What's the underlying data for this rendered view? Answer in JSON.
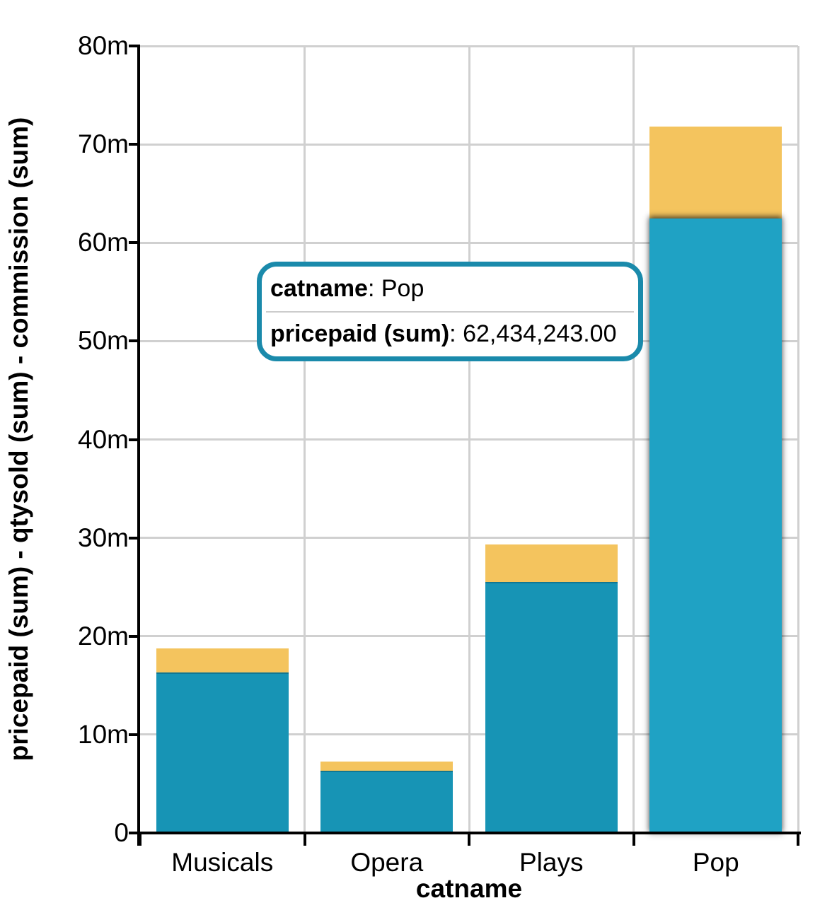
{
  "chart": {
    "y_axis": {
      "title": "pricepaid (sum) - qtysold (sum) - commission (sum)",
      "tick_labels": [
        "80m",
        "70m",
        "60m",
        "50m",
        "40m",
        "30m",
        "20m",
        "10m",
        "0"
      ]
    },
    "x_axis": {
      "title": "catname",
      "categories": [
        "Musicals",
        "Opera",
        "Plays",
        "Pop"
      ]
    },
    "tooltip": {
      "rows": [
        {
          "label": "catname",
          "value": ": Pop"
        },
        {
          "label": "pricepaid (sum)",
          "value": ": 62,434,243.00"
        }
      ]
    },
    "colors": {
      "pricepaid_bar": "#1794b5",
      "pricepaid_bar_hovered": "#1fa2c4",
      "commission_bar": "#f4c45e",
      "tooltip_border": "#1a8aab",
      "gridline": "#d0d0d0",
      "axis": "#000000"
    }
  },
  "chart_data": {
    "type": "bar",
    "stacked": true,
    "title": "",
    "xlabel": "catname",
    "ylabel": "pricepaid (sum) - qtysold (sum) - commission (sum)",
    "categories": [
      "Musicals",
      "Opera",
      "Plays",
      "Pop"
    ],
    "series": [
      {
        "name": "pricepaid (sum)",
        "color": "#1794b5",
        "values": [
          16320000,
          6330000,
          25520000,
          62434243
        ]
      },
      {
        "name": "qtysold (sum)",
        "color": null,
        "values": [
          null,
          null,
          null,
          null
        ],
        "visible": false
      },
      {
        "name": "commission (sum)",
        "color": "#f4c45e",
        "values": [
          2450000,
          950000,
          3830000,
          9365000
        ]
      }
    ],
    "ylim": [
      0,
      80000000
    ],
    "y_ticks": [
      {
        "label": "0",
        "value": 0
      },
      {
        "label": "10m",
        "value": 10000000
      },
      {
        "label": "20m",
        "value": 20000000
      },
      {
        "label": "30m",
        "value": 30000000
      },
      {
        "label": "40m",
        "value": 40000000
      },
      {
        "label": "50m",
        "value": 50000000
      },
      {
        "label": "60m",
        "value": 60000000
      },
      {
        "label": "70m",
        "value": 70000000
      },
      {
        "label": "80m",
        "value": 80000000
      }
    ],
    "grid": true,
    "legend": "none",
    "highlighted": {
      "category": "Pop",
      "series": "pricepaid (sum)"
    }
  }
}
